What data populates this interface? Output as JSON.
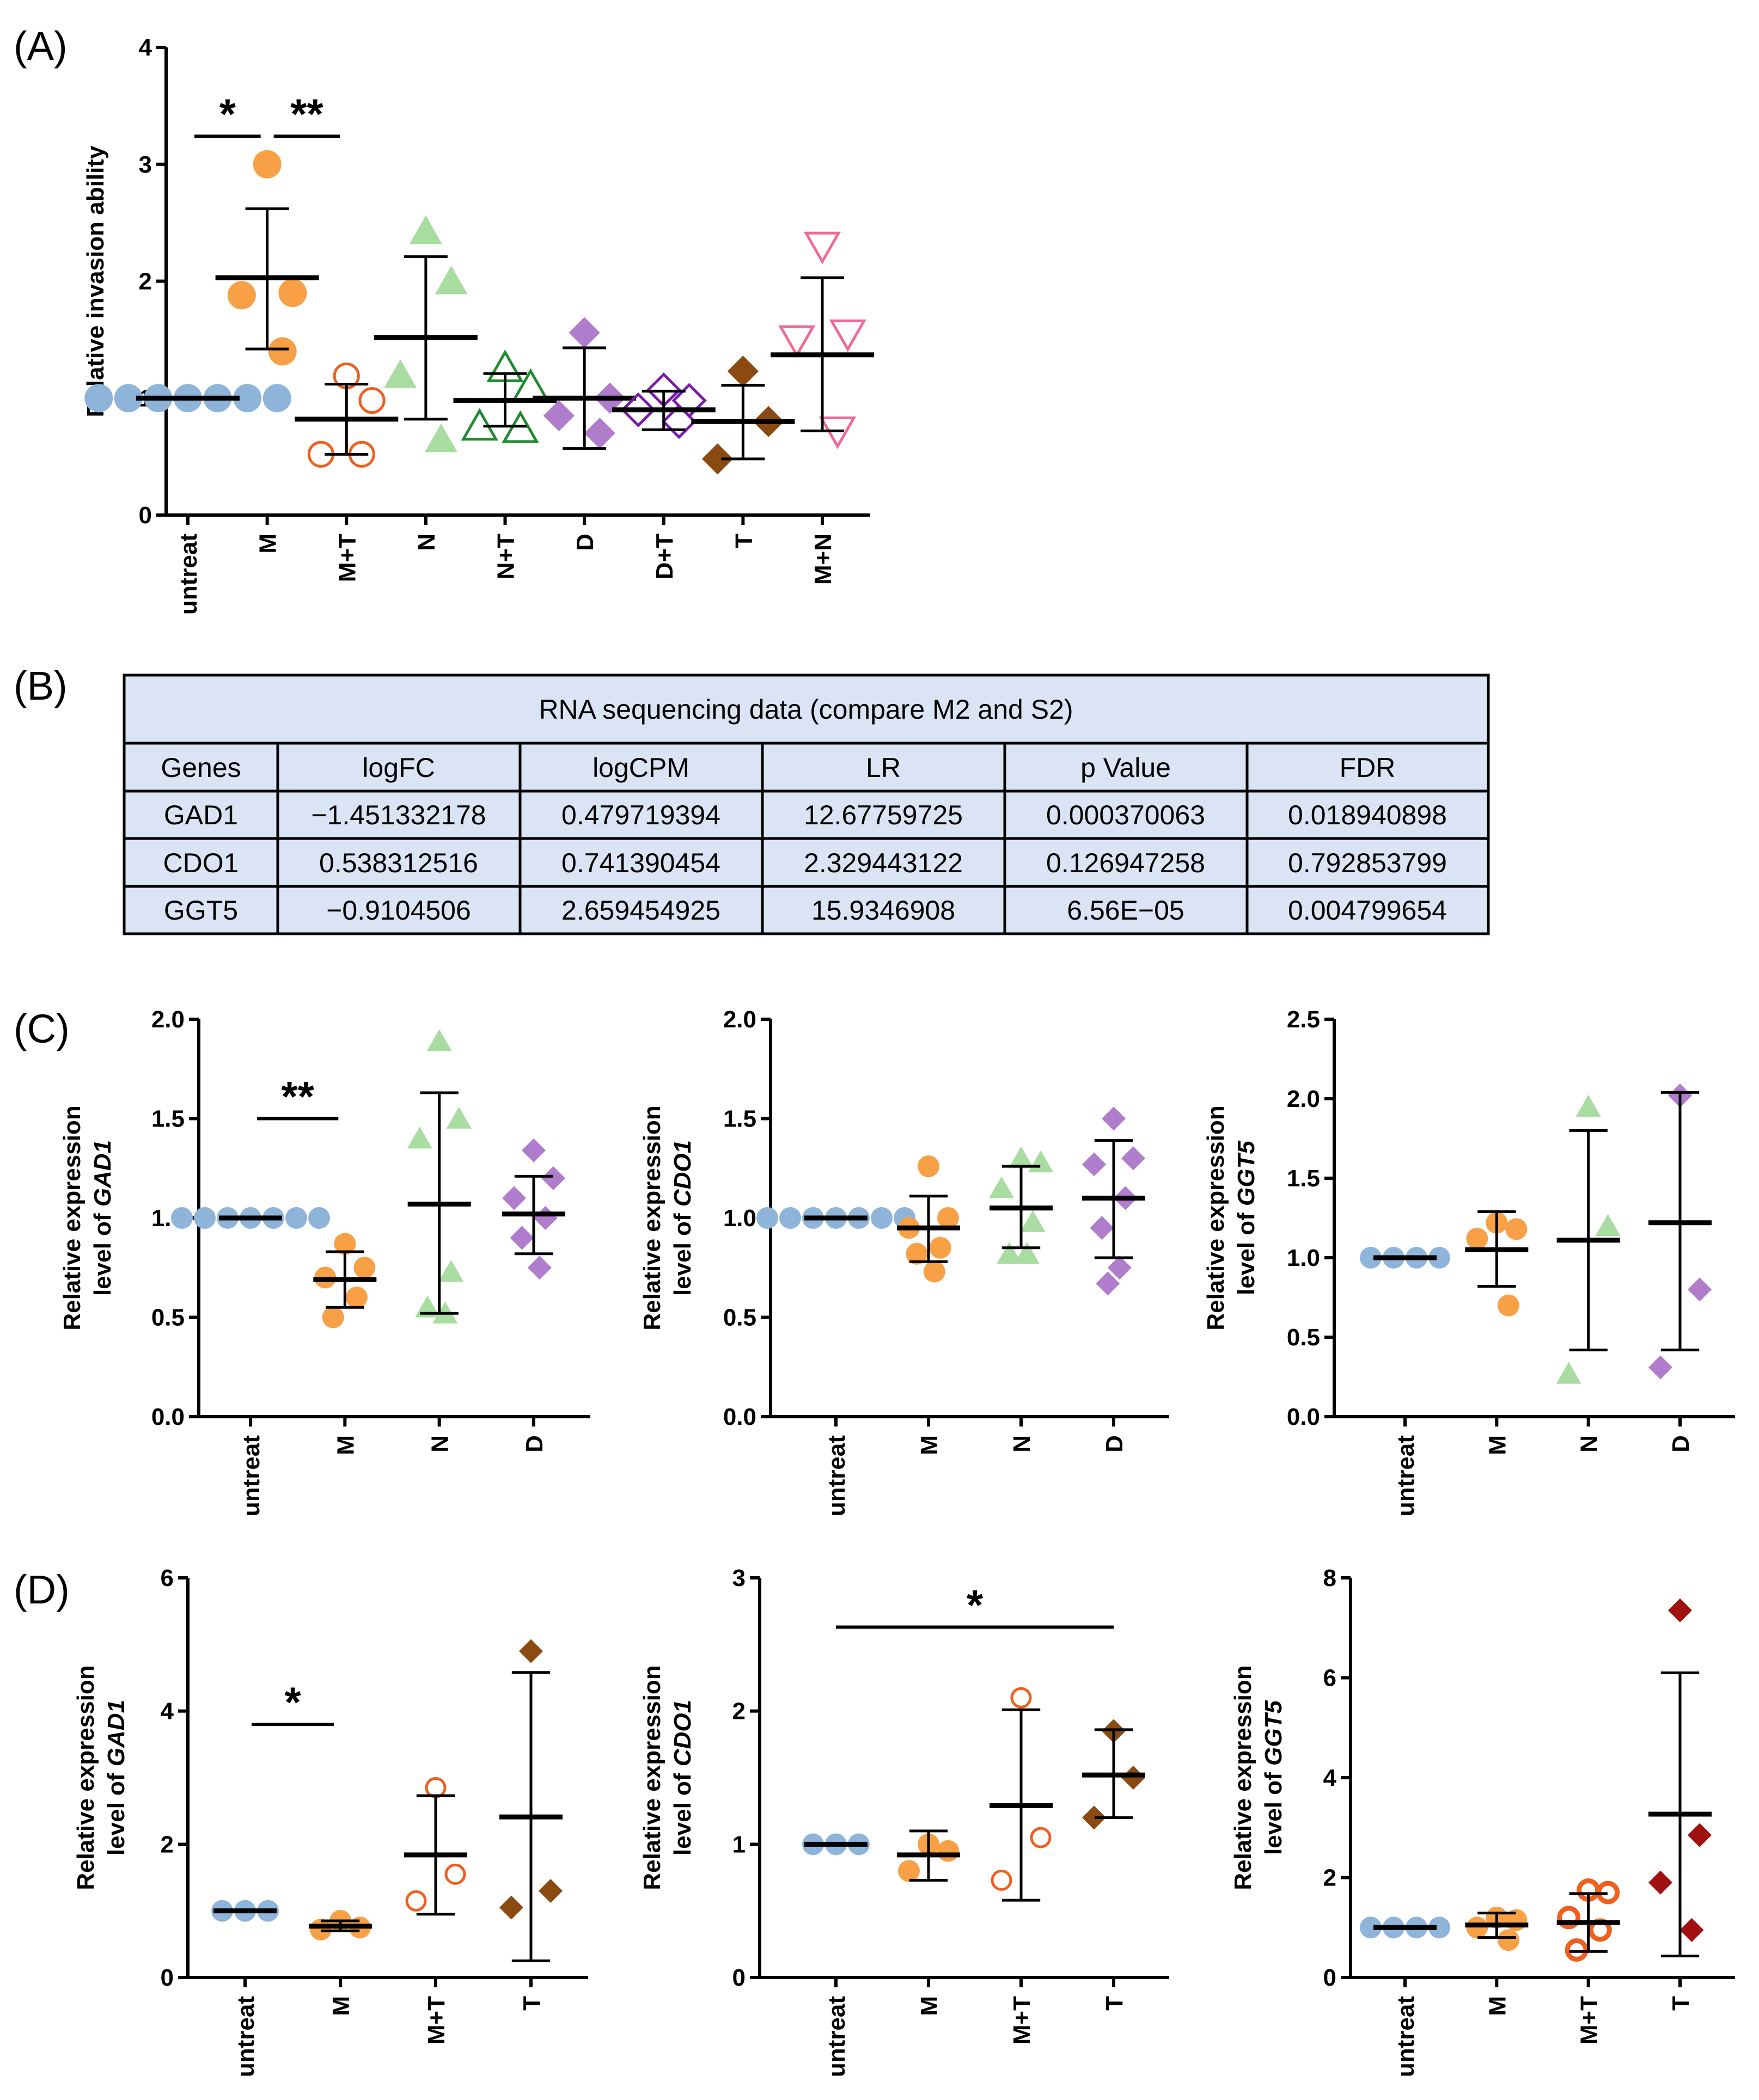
{
  "panel_labels": [
    "(A)",
    "(B)",
    "(C)",
    "(D)"
  ],
  "colors": {
    "untreat": "#8fb4d9",
    "M": "#f7a045",
    "M+T": "#ee6020",
    "N": "#a8dca0",
    "N+T": "#1f8a2e",
    "D": "#b07ccc",
    "D+T": "#7a1aa8",
    "T": "#8a4a12",
    "M+N": "#ee6a9a",
    "T_red": "#a01010",
    "table_fill": "#dbe4f4",
    "axis": "#000000"
  },
  "table": {
    "title": "RNA sequencing data (compare M2 and S2)",
    "headers": [
      "Genes",
      "logFC",
      "logCPM",
      "LR",
      "p Value",
      "FDR"
    ],
    "rows": [
      [
        "GAD1",
        "−1.451332178",
        "0.479719394",
        "12.67759725",
        "0.000370063",
        "0.018940898"
      ],
      [
        "CDO1",
        "0.538312516",
        "0.741390454",
        "2.329443122",
        "0.126947258",
        "0.792853799"
      ],
      [
        "GGT5",
        "−0.9104506",
        "2.659454925",
        "15.9346908",
        "6.56E−05",
        "0.004799654"
      ]
    ]
  },
  "chart_data": [
    {
      "id": "A",
      "type": "scatter",
      "title": "",
      "xlabel": "",
      "ylabel": "Relative invasion ability",
      "ylim": [
        0,
        4
      ],
      "yticks": [
        "0",
        "1",
        "2",
        "3",
        "4"
      ],
      "ytick_values": [
        0,
        1,
        2,
        3,
        4
      ],
      "categories": [
        "untreat",
        "M",
        "M+T",
        "N",
        "N+T",
        "D",
        "D+T",
        "T",
        "M+N"
      ],
      "series": [
        {
          "name": "untreat",
          "marker": "circle",
          "points": [
            1,
            1,
            1,
            1,
            1,
            1,
            1
          ],
          "mean": 1.0,
          "err": [
            1.0,
            1.0
          ]
        },
        {
          "name": "M",
          "marker": "circle",
          "points": [
            3.0,
            1.9,
            1.88,
            1.4
          ],
          "mean": 2.03,
          "err": [
            1.42,
            2.62
          ]
        },
        {
          "name": "M+T",
          "marker": "circle-open",
          "points": [
            1.19,
            0.98,
            0.52,
            0.52
          ],
          "mean": 0.82,
          "err": [
            0.52,
            1.12
          ]
        },
        {
          "name": "N",
          "marker": "triangle",
          "points": [
            2.43,
            2.0,
            1.2,
            0.65
          ],
          "mean": 1.52,
          "err": [
            0.82,
            2.21
          ]
        },
        {
          "name": "N+T",
          "marker": "triangle-open",
          "points": [
            1.26,
            1.1,
            0.76,
            0.74
          ],
          "mean": 0.98,
          "err": [
            0.76,
            1.21
          ]
        },
        {
          "name": "D",
          "marker": "diamond",
          "points": [
            1.56,
            1.0,
            0.85,
            0.7
          ],
          "mean": 1.0,
          "err": [
            0.57,
            1.43
          ]
        },
        {
          "name": "D+T",
          "marker": "diamond-open",
          "points": [
            1.07,
            0.98,
            0.9,
            0.8
          ],
          "mean": 0.9,
          "err": [
            0.73,
            1.06
          ]
        },
        {
          "name": "T",
          "marker": "diamond",
          "points": [
            1.23,
            0.8,
            0.48
          ],
          "mean": 0.8,
          "err": [
            0.48,
            1.11
          ]
        },
        {
          "name": "M+N",
          "marker": "triangle-down-open",
          "points": [
            2.3,
            1.55,
            1.5,
            0.72
          ],
          "mean": 1.37,
          "err": [
            0.72,
            2.03
          ]
        }
      ],
      "significance": [
        {
          "label": "*",
          "from": 0,
          "to": 1,
          "y": 3.24
        },
        {
          "label": "**",
          "from": 1,
          "to": 2,
          "y": 3.24
        }
      ]
    },
    {
      "id": "C1",
      "type": "scatter",
      "title": "",
      "xlabel": "",
      "ylabel": [
        "Relative expression",
        "level of ",
        "GAD1"
      ],
      "ylim": [
        0,
        2.0
      ],
      "yticks": [
        "0.0",
        "0.5",
        "1.0",
        "1.5",
        "2.0"
      ],
      "ytick_values": [
        0,
        0.5,
        1.0,
        1.5,
        2.0
      ],
      "categories": [
        "untreat",
        "M",
        "N",
        "D"
      ],
      "series": [
        {
          "name": "untreat",
          "marker": "circle",
          "points": [
            1,
            1,
            1,
            1,
            1,
            1,
            1
          ],
          "mean": 1.0,
          "err": [
            1.0,
            1.0
          ]
        },
        {
          "name": "M",
          "marker": "circle",
          "points": [
            0.87,
            0.75,
            0.7,
            0.6,
            0.5
          ],
          "mean": 0.69,
          "err": [
            0.55,
            0.83
          ]
        },
        {
          "name": "N",
          "marker": "triangle",
          "points": [
            1.89,
            1.5,
            1.4,
            0.73,
            0.55,
            0.52
          ],
          "mean": 1.07,
          "err": [
            0.52,
            1.63
          ]
        },
        {
          "name": "D",
          "marker": "diamond",
          "points": [
            1.34,
            1.2,
            1.1,
            1.0,
            0.9,
            0.75
          ],
          "mean": 1.02,
          "err": [
            0.82,
            1.21
          ]
        }
      ],
      "significance": [
        {
          "label": "**",
          "from": 0,
          "to": 1,
          "y": 1.5
        }
      ]
    },
    {
      "id": "C2",
      "type": "scatter",
      "title": "",
      "xlabel": "",
      "ylabel": [
        "Relative expression",
        "level of ",
        "CDO1"
      ],
      "ylim": [
        0,
        2.0
      ],
      "yticks": [
        "0.0",
        "0.5",
        "1.0",
        "1.5",
        "2.0"
      ],
      "ytick_values": [
        0,
        0.5,
        1.0,
        1.5,
        2.0
      ],
      "categories": [
        "untreat",
        "M",
        "N",
        "D"
      ],
      "series": [
        {
          "name": "untreat",
          "marker": "circle",
          "points": [
            1,
            1,
            1,
            1,
            1,
            1,
            1
          ],
          "mean": 1.0,
          "err": [
            1.0,
            1.0
          ]
        },
        {
          "name": "M",
          "marker": "circle",
          "points": [
            1.26,
            1.0,
            0.95,
            0.85,
            0.82,
            0.73
          ],
          "mean": 0.95,
          "err": [
            0.78,
            1.11
          ]
        },
        {
          "name": "N",
          "marker": "triangle",
          "points": [
            1.3,
            1.28,
            1.15,
            0.98,
            0.82,
            0.82
          ],
          "mean": 1.05,
          "err": [
            0.85,
            1.26
          ]
        },
        {
          "name": "D",
          "marker": "diamond",
          "points": [
            1.5,
            1.3,
            1.27,
            1.1,
            0.95,
            0.75,
            0.67
          ],
          "mean": 1.1,
          "err": [
            0.8,
            1.39
          ]
        }
      ],
      "significance": []
    },
    {
      "id": "C3",
      "type": "scatter",
      "title": "",
      "xlabel": "",
      "ylabel": [
        "Relative expression",
        "level of ",
        "GGT5"
      ],
      "ylim": [
        0,
        2.5
      ],
      "yticks": [
        "0.0",
        "0.5",
        "1.0",
        "1.5",
        "2.0",
        "2.5"
      ],
      "ytick_values": [
        0,
        0.5,
        1.0,
        1.5,
        2.0,
        2.5
      ],
      "categories": [
        "untreat",
        "M",
        "N",
        "D"
      ],
      "series": [
        {
          "name": "untreat",
          "marker": "circle",
          "points": [
            1,
            1,
            1,
            1
          ],
          "mean": 1.0,
          "err": [
            1.0,
            1.0
          ]
        },
        {
          "name": "M",
          "marker": "circle",
          "points": [
            1.22,
            1.18,
            1.12,
            0.7
          ],
          "mean": 1.05,
          "err": [
            0.82,
            1.29
          ]
        },
        {
          "name": "N",
          "marker": "triangle",
          "points": [
            1.95,
            1.2,
            0.27
          ],
          "mean": 1.11,
          "err": [
            0.42,
            1.8
          ]
        },
        {
          "name": "D",
          "marker": "diamond",
          "points": [
            2.02,
            0.8,
            0.31
          ],
          "mean": 1.22,
          "err": [
            0.42,
            2.04
          ]
        }
      ],
      "significance": []
    },
    {
      "id": "D1",
      "type": "scatter",
      "title": "",
      "xlabel": "",
      "ylabel": [
        "Relative expression",
        "level of ",
        "GAD1"
      ],
      "ylim": [
        0,
        6
      ],
      "yticks": [
        "0",
        "2",
        "4",
        "6"
      ],
      "ytick_values": [
        0,
        2,
        4,
        6
      ],
      "categories": [
        "untreat",
        "M",
        "M+T",
        "T"
      ],
      "series": [
        {
          "name": "untreat",
          "marker": "circle",
          "points": [
            1,
            1,
            1
          ],
          "mean": 1.0,
          "err": [
            1.0,
            1.0
          ]
        },
        {
          "name": "M",
          "marker": "circle",
          "points": [
            0.85,
            0.75,
            0.72
          ],
          "mean": 0.77,
          "err": [
            0.7,
            0.85
          ]
        },
        {
          "name": "M+T",
          "marker": "circle-open",
          "points": [
            2.85,
            1.55,
            1.15
          ],
          "mean": 1.84,
          "err": [
            0.95,
            2.73
          ]
        },
        {
          "name": "T",
          "marker": "diamond",
          "points": [
            4.9,
            1.3,
            1.05
          ],
          "mean": 2.41,
          "err": [
            0.25,
            4.58
          ]
        }
      ],
      "significance": [
        {
          "label": "*",
          "from": 0,
          "to": 1,
          "y": 3.8
        }
      ]
    },
    {
      "id": "D2",
      "type": "scatter",
      "title": "",
      "xlabel": "",
      "ylabel": [
        "Relative expression",
        "level of ",
        "CDO1"
      ],
      "ylim": [
        0,
        3
      ],
      "yticks": [
        "0",
        "1",
        "2",
        "3"
      ],
      "ytick_values": [
        0,
        1,
        2,
        3
      ],
      "categories": [
        "untreat",
        "M",
        "M+T",
        "T"
      ],
      "series": [
        {
          "name": "untreat",
          "marker": "circle",
          "points": [
            1,
            1,
            1
          ],
          "mean": 1.0,
          "err": [
            1.0,
            1.0
          ]
        },
        {
          "name": "M",
          "marker": "circle",
          "points": [
            1.0,
            0.95,
            0.8
          ],
          "mean": 0.92,
          "err": [
            0.73,
            1.1
          ]
        },
        {
          "name": "M+T",
          "marker": "circle-open",
          "points": [
            2.1,
            1.05,
            0.73
          ],
          "mean": 1.29,
          "err": [
            0.58,
            2.01
          ]
        },
        {
          "name": "T",
          "marker": "diamond",
          "points": [
            1.85,
            1.5,
            1.2
          ],
          "mean": 1.52,
          "err": [
            1.2,
            1.86
          ]
        }
      ],
      "significance": [
        {
          "label": "*",
          "from": 0,
          "to": 3,
          "y": 2.63
        }
      ]
    },
    {
      "id": "D3",
      "type": "scatter",
      "title": "",
      "xlabel": "",
      "ylabel": [
        "Relative expression",
        "level of ",
        "GGT5"
      ],
      "ylim": [
        0,
        8
      ],
      "yticks": [
        "0",
        "2",
        "4",
        "6",
        "8"
      ],
      "ytick_values": [
        0,
        2,
        4,
        6,
        8
      ],
      "categories": [
        "untreat",
        "M",
        "M+T",
        "T"
      ],
      "series": [
        {
          "name": "untreat",
          "marker": "circle",
          "points": [
            1,
            1,
            1,
            1
          ],
          "mean": 1.0,
          "err": [
            1.0,
            1.0
          ]
        },
        {
          "name": "M",
          "marker": "circle",
          "points": [
            1.2,
            1.15,
            1.0,
            0.75
          ],
          "mean": 1.05,
          "err": [
            0.8,
            1.29
          ]
        },
        {
          "name": "M+T",
          "marker": "circle-open-thick",
          "points": [
            1.75,
            1.7,
            1.2,
            0.95,
            0.55
          ],
          "mean": 1.1,
          "err": [
            0.52,
            1.68
          ]
        },
        {
          "name": "T_red",
          "marker": "diamond",
          "points": [
            7.35,
            2.85,
            1.9,
            0.95
          ],
          "mean": 3.27,
          "err": [
            0.43,
            6.1
          ]
        }
      ],
      "significance": []
    }
  ]
}
